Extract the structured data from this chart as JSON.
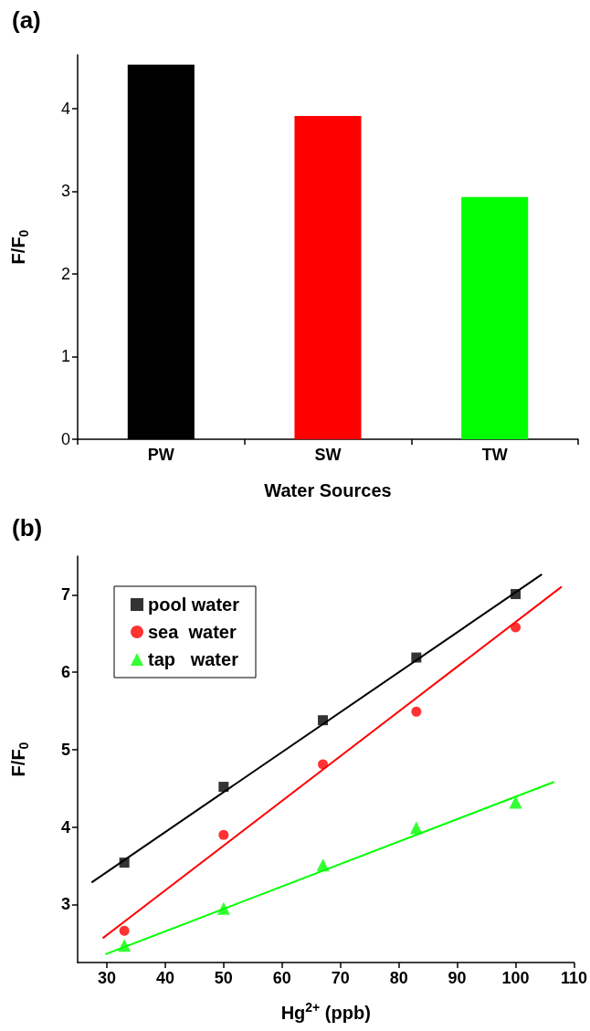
{
  "chart_data": [
    {
      "type": "bar",
      "title": "(a)",
      "xlabel": "Water Sources",
      "ylabel": "F/F$_{0}$",
      "categories": [
        "PW",
        "SW",
        "TW"
      ],
      "values": [
        4.53,
        3.91,
        2.93
      ],
      "colors": [
        "#000000",
        "#ff0000",
        "#00ff00"
      ],
      "ylim": [
        0,
        4.65
      ],
      "yticks": [
        0,
        1,
        2,
        3,
        4
      ]
    },
    {
      "type": "scatter",
      "title": "(b)",
      "xlabel": "Hg$^{2+}$ (ppb)",
      "ylabel": "F/F$_{0}$",
      "xlim": [
        25,
        110
      ],
      "xticks": [
        30,
        40,
        50,
        60,
        70,
        80,
        90,
        100,
        110
      ],
      "ylim": [
        2.25,
        7.5
      ],
      "yticks": [
        3,
        4,
        5,
        6,
        7
      ],
      "legend": "top left",
      "series": [
        {
          "name": "pool water",
          "color": "#000000",
          "marker": "square",
          "x": [
            33,
            50,
            67,
            83,
            100
          ],
          "values": [
            3.54,
            4.52,
            5.38,
            6.19,
            7.01
          ]
        },
        {
          "name": "sea  water",
          "color": "#ff0000",
          "marker": "circle",
          "x": [
            33,
            50,
            67,
            83,
            100
          ],
          "values": [
            2.66,
            3.9,
            4.81,
            5.49,
            6.58
          ]
        },
        {
          "name": "tap   water",
          "color": "#00ff00",
          "marker": "triangle",
          "x": [
            33,
            50,
            67,
            83,
            100
          ],
          "values": [
            2.47,
            2.95,
            3.51,
            3.99,
            4.32
          ]
        },
        {
          "type": "line",
          "color": "#000000",
          "marker": "none",
          "x": [
            27.5,
            104.4
          ],
          "values": [
            3.29,
            7.26
          ]
        },
        {
          "type": "line",
          "color": "#ff0000",
          "marker": "none",
          "x": [
            29.4,
            107.8
          ],
          "values": [
            2.57,
            7.1
          ]
        },
        {
          "type": "line",
          "color": "#00ff00",
          "marker": "none",
          "x": [
            29.9,
            106.5
          ],
          "values": [
            2.36,
            4.58
          ]
        }
      ]
    }
  ]
}
